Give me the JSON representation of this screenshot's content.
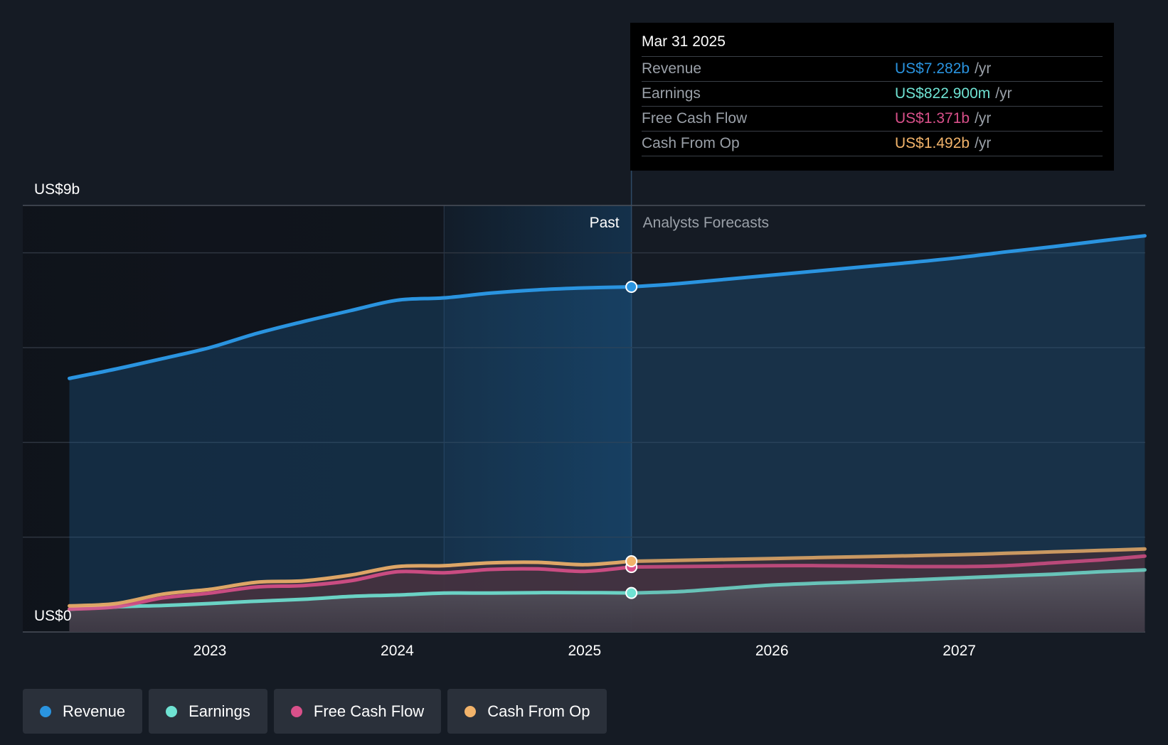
{
  "tooltip": {
    "date": "Mar 31 2025",
    "rows": [
      {
        "label": "Revenue",
        "value": "US$7.282b",
        "unit": "/yr",
        "color": "#2a94e0"
      },
      {
        "label": "Earnings",
        "value": "US$822.900m",
        "unit": "/yr",
        "color": "#6fe3d3"
      },
      {
        "label": "Free Cash Flow",
        "value": "US$1.371b",
        "unit": "/yr",
        "color": "#d9508a"
      },
      {
        "label": "Cash From Op",
        "value": "US$1.492b",
        "unit": "/yr",
        "color": "#f2b36a"
      }
    ]
  },
  "legend": [
    {
      "label": "Revenue",
      "color": "#2a94e0"
    },
    {
      "label": "Earnings",
      "color": "#6fe3d3"
    },
    {
      "label": "Free Cash Flow",
      "color": "#d9508a"
    },
    {
      "label": "Cash From Op",
      "color": "#f2b36a"
    }
  ],
  "chart_data": {
    "type": "area",
    "ylim": [
      0,
      9
    ],
    "y_unit": "US$ billions",
    "y_tick_labels": {
      "top": "US$9b",
      "bottom": "US$0"
    },
    "x_tick_labels": [
      "2023",
      "2024",
      "2025",
      "2026",
      "2027"
    ],
    "x_range": [
      2022.25,
      2027.99
    ],
    "past_label": "Past",
    "forecast_label": "Analysts Forecasts",
    "past_forecast_boundary": 2025.25,
    "highlight_start": 2024.25,
    "grid": true,
    "legend_position": "bottom-left",
    "series": [
      {
        "name": "Revenue",
        "color": "#2a94e0",
        "points": [
          [
            2022.25,
            5.35
          ],
          [
            2022.5,
            5.55
          ],
          [
            2022.75,
            5.77
          ],
          [
            2023.0,
            6.0
          ],
          [
            2023.25,
            6.3
          ],
          [
            2023.5,
            6.55
          ],
          [
            2023.75,
            6.78
          ],
          [
            2024.0,
            7.0
          ],
          [
            2024.25,
            7.05
          ],
          [
            2024.5,
            7.15
          ],
          [
            2024.75,
            7.22
          ],
          [
            2025.0,
            7.26
          ],
          [
            2025.25,
            7.282
          ],
          [
            2025.5,
            7.35
          ],
          [
            2025.75,
            7.44
          ],
          [
            2026.0,
            7.53
          ],
          [
            2026.25,
            7.62
          ],
          [
            2026.5,
            7.71
          ],
          [
            2026.75,
            7.8
          ],
          [
            2027.0,
            7.9
          ],
          [
            2027.25,
            8.02
          ],
          [
            2027.5,
            8.13
          ],
          [
            2027.75,
            8.25
          ],
          [
            2027.99,
            8.36
          ]
        ]
      },
      {
        "name": "Cash From Op",
        "color": "#f2b36a",
        "points": [
          [
            2022.25,
            0.55
          ],
          [
            2022.5,
            0.6
          ],
          [
            2022.75,
            0.8
          ],
          [
            2023.0,
            0.9
          ],
          [
            2023.25,
            1.05
          ],
          [
            2023.5,
            1.08
          ],
          [
            2023.75,
            1.2
          ],
          [
            2024.0,
            1.38
          ],
          [
            2024.25,
            1.4
          ],
          [
            2024.5,
            1.46
          ],
          [
            2024.75,
            1.47
          ],
          [
            2025.0,
            1.42
          ],
          [
            2025.25,
            1.492
          ],
          [
            2025.5,
            1.51
          ],
          [
            2025.75,
            1.53
          ],
          [
            2026.0,
            1.55
          ],
          [
            2026.25,
            1.57
          ],
          [
            2026.5,
            1.59
          ],
          [
            2026.75,
            1.61
          ],
          [
            2027.0,
            1.63
          ],
          [
            2027.25,
            1.66
          ],
          [
            2027.5,
            1.69
          ],
          [
            2027.75,
            1.72
          ],
          [
            2027.99,
            1.75
          ]
        ]
      },
      {
        "name": "Free Cash Flow",
        "color": "#d9508a",
        "points": [
          [
            2022.25,
            0.48
          ],
          [
            2022.5,
            0.53
          ],
          [
            2022.75,
            0.72
          ],
          [
            2023.0,
            0.82
          ],
          [
            2023.25,
            0.95
          ],
          [
            2023.5,
            0.98
          ],
          [
            2023.75,
            1.08
          ],
          [
            2024.0,
            1.27
          ],
          [
            2024.25,
            1.25
          ],
          [
            2024.5,
            1.32
          ],
          [
            2024.75,
            1.33
          ],
          [
            2025.0,
            1.28
          ],
          [
            2025.25,
            1.371
          ],
          [
            2025.5,
            1.38
          ],
          [
            2025.75,
            1.39
          ],
          [
            2026.0,
            1.4
          ],
          [
            2026.25,
            1.4
          ],
          [
            2026.5,
            1.39
          ],
          [
            2026.75,
            1.38
          ],
          [
            2027.0,
            1.38
          ],
          [
            2027.25,
            1.4
          ],
          [
            2027.5,
            1.46
          ],
          [
            2027.75,
            1.52
          ],
          [
            2027.99,
            1.6
          ]
        ]
      },
      {
        "name": "Earnings",
        "color": "#6fe3d3",
        "points": [
          [
            2022.25,
            0.48
          ],
          [
            2022.5,
            0.53
          ],
          [
            2022.75,
            0.56
          ],
          [
            2023.0,
            0.6
          ],
          [
            2023.25,
            0.65
          ],
          [
            2023.5,
            0.69
          ],
          [
            2023.75,
            0.75
          ],
          [
            2024.0,
            0.78
          ],
          [
            2024.25,
            0.82
          ],
          [
            2024.5,
            0.82
          ],
          [
            2024.75,
            0.83
          ],
          [
            2025.0,
            0.83
          ],
          [
            2025.25,
            0.8229
          ],
          [
            2025.5,
            0.85
          ],
          [
            2025.75,
            0.92
          ],
          [
            2026.0,
            0.99
          ],
          [
            2026.25,
            1.03
          ],
          [
            2026.5,
            1.06
          ],
          [
            2026.75,
            1.1
          ],
          [
            2027.0,
            1.14
          ],
          [
            2027.25,
            1.18
          ],
          [
            2027.5,
            1.22
          ],
          [
            2027.75,
            1.27
          ],
          [
            2027.99,
            1.31
          ]
        ]
      }
    ],
    "highlight_x": 2025.25
  }
}
